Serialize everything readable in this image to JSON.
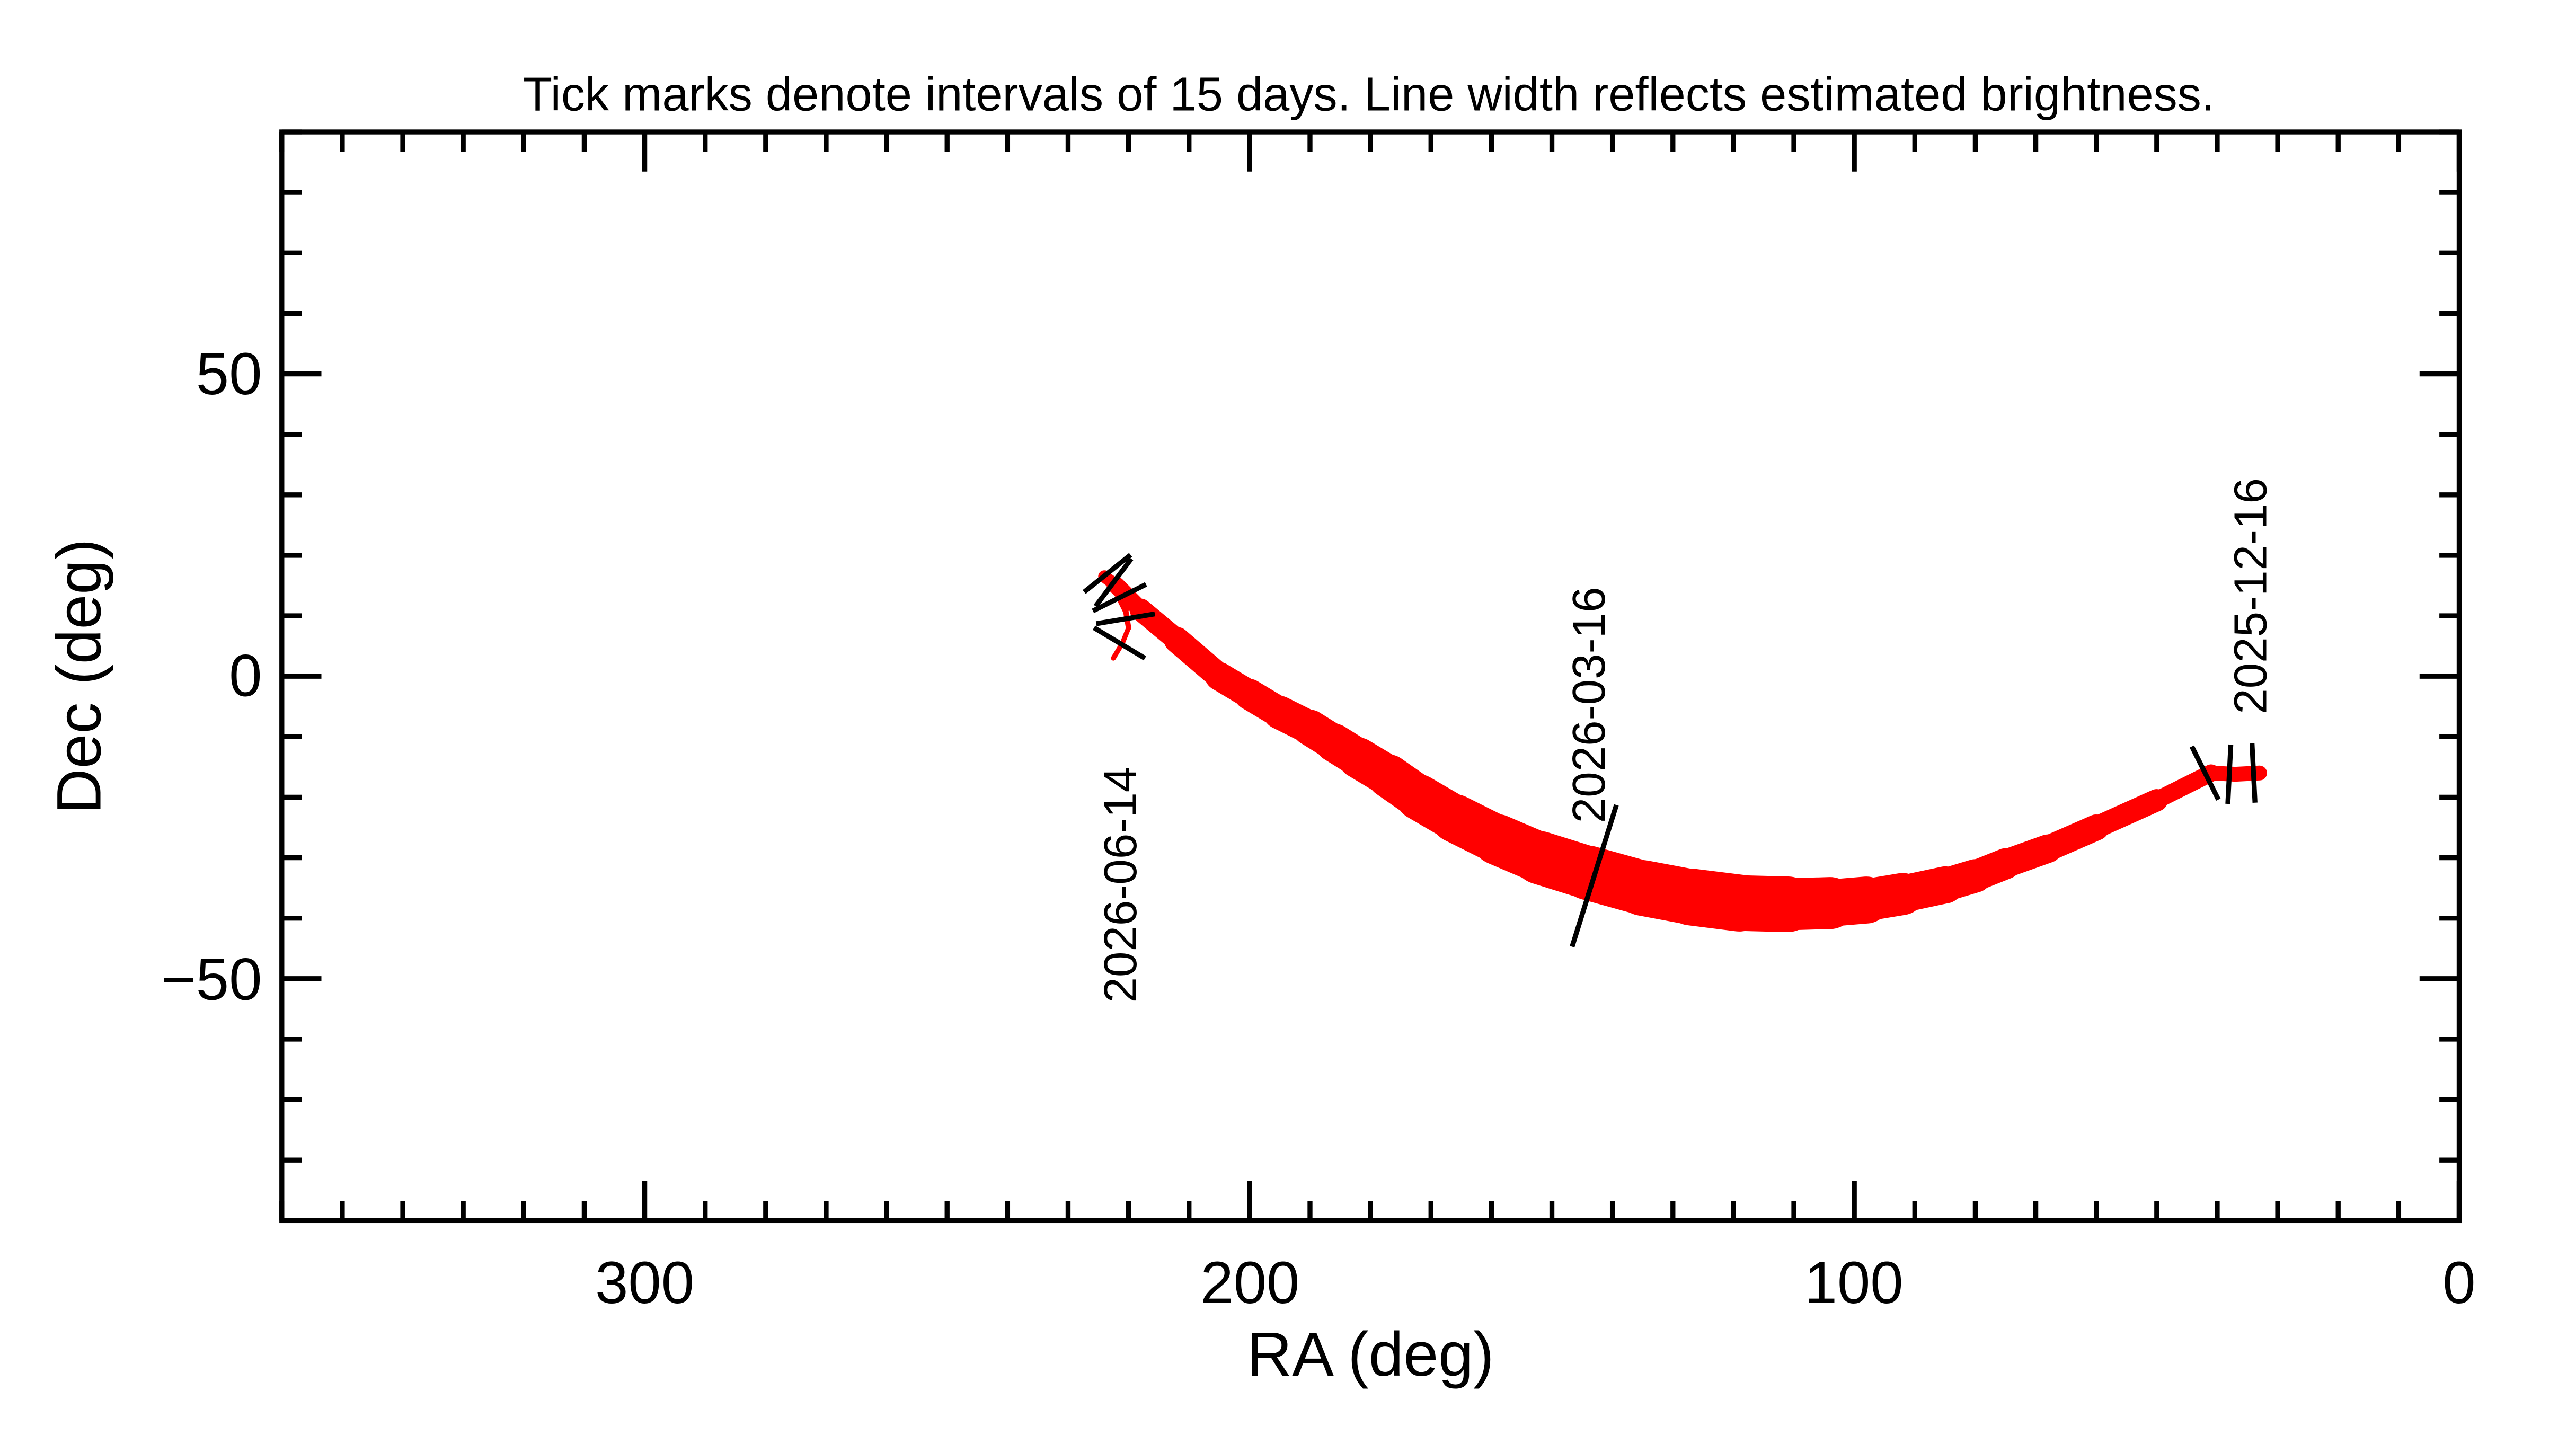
{
  "chart_data": {
    "type": "line",
    "title": "Tick marks denote intervals of 15 days.  Line width reflects estimated brightness.",
    "xlabel": "RA (deg)",
    "ylabel": "Dec (deg)",
    "xlim": [
      360,
      0
    ],
    "ylim": [
      -90,
      90
    ],
    "x_ticks": [
      300,
      200,
      100,
      0
    ],
    "x_tick_labels": [
      "300",
      "200",
      "100",
      "0"
    ],
    "y_ticks": [
      50,
      0,
      -50
    ],
    "y_tick_labels": [
      "50",
      "0",
      "−50"
    ],
    "x_minor_step": 10,
    "y_minor_step": 10,
    "grid": false,
    "line_color": "#ff0000",
    "track": {
      "ra": [
        33,
        37,
        41,
        50,
        60,
        68,
        75,
        80,
        85,
        92,
        98,
        104,
        111,
        119,
        127,
        135,
        144,
        152,
        159,
        166,
        172,
        177,
        182,
        186,
        190,
        195,
        200,
        205,
        212,
        218,
        222,
        224,
        222,
        220.5,
        220,
        221,
        222.5
      ],
      "dec": [
        -16,
        -16.2,
        -16,
        -20.5,
        -25,
        -28.5,
        -31,
        -33,
        -34.5,
        -36,
        -37,
        -37.5,
        -37.7,
        -37.5,
        -36.5,
        -35,
        -32.5,
        -30,
        -27,
        -23.5,
        -20,
        -16.5,
        -13.5,
        -11,
        -8.5,
        -6,
        -3,
        0,
        6,
        11,
        15,
        16.5,
        14,
        11,
        8,
        5.5,
        3
      ],
      "relative_width": [
        3,
        3,
        3,
        4,
        5,
        5.5,
        6,
        6.5,
        7,
        8,
        9,
        10,
        11,
        11.5,
        11.5,
        11,
        11,
        10.5,
        10,
        9.5,
        9,
        8.5,
        8,
        7.5,
        7,
        6.5,
        6,
        5.5,
        5,
        4,
        3,
        2,
        1.5,
        1.2,
        1,
        1,
        1
      ]
    },
    "date_ticks": [
      {
        "ra": 34,
        "dec": -16
      },
      {
        "ra": 38,
        "dec": -16.2
      },
      {
        "ra": 42,
        "dec": -16
      },
      {
        "ra": 143,
        "dec": -33
      },
      {
        "ra": 222.5,
        "dec": 15.5
      },
      {
        "ra": 223.5,
        "dec": 17
      },
      {
        "ra": 221.5,
        "dec": 13
      },
      {
        "ra": 220.5,
        "dec": 9.5
      },
      {
        "ra": 221.5,
        "dec": 5.5
      }
    ],
    "date_labels": [
      {
        "text": "2025-12-16",
        "ra": 33,
        "dec": -16
      },
      {
        "text": "2026-03-16",
        "ra": 143,
        "dec": -33
      },
      {
        "text": "2026-06-14",
        "ra": 220,
        "dec": 6
      }
    ]
  }
}
